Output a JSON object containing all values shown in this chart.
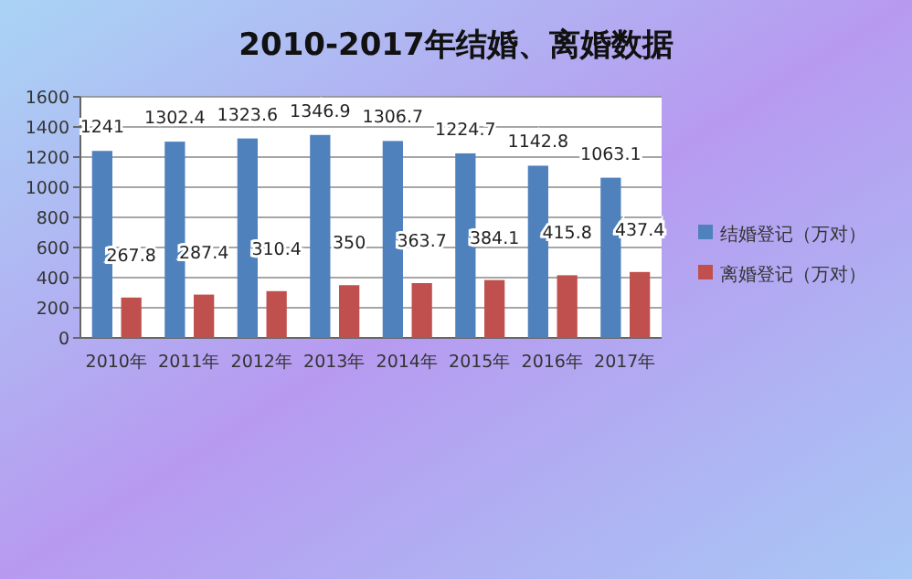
{
  "chart_data": {
    "type": "bar",
    "title": "2010-2017年结婚、离婚数据",
    "categories": [
      "2010年",
      "2011年",
      "2012年",
      "2013年",
      "2014年",
      "2015年",
      "2016年",
      "2017年"
    ],
    "series": [
      {
        "name": "结婚登记（万对）",
        "color": "#4f81bd",
        "values": [
          1241,
          1302.4,
          1323.6,
          1346.9,
          1306.7,
          1224.7,
          1142.8,
          1063.1
        ]
      },
      {
        "name": "离婚登记（万对）",
        "color": "#c0504d",
        "values": [
          267.8,
          287.4,
          310.4,
          350,
          363.7,
          384.1,
          415.8,
          437.4
        ]
      }
    ],
    "ylim": [
      0,
      1600
    ],
    "yticks": [
      0,
      200,
      400,
      600,
      800,
      1000,
      1200,
      1400,
      1600
    ],
    "grid": "y",
    "legend": "right",
    "data_labels": true
  }
}
